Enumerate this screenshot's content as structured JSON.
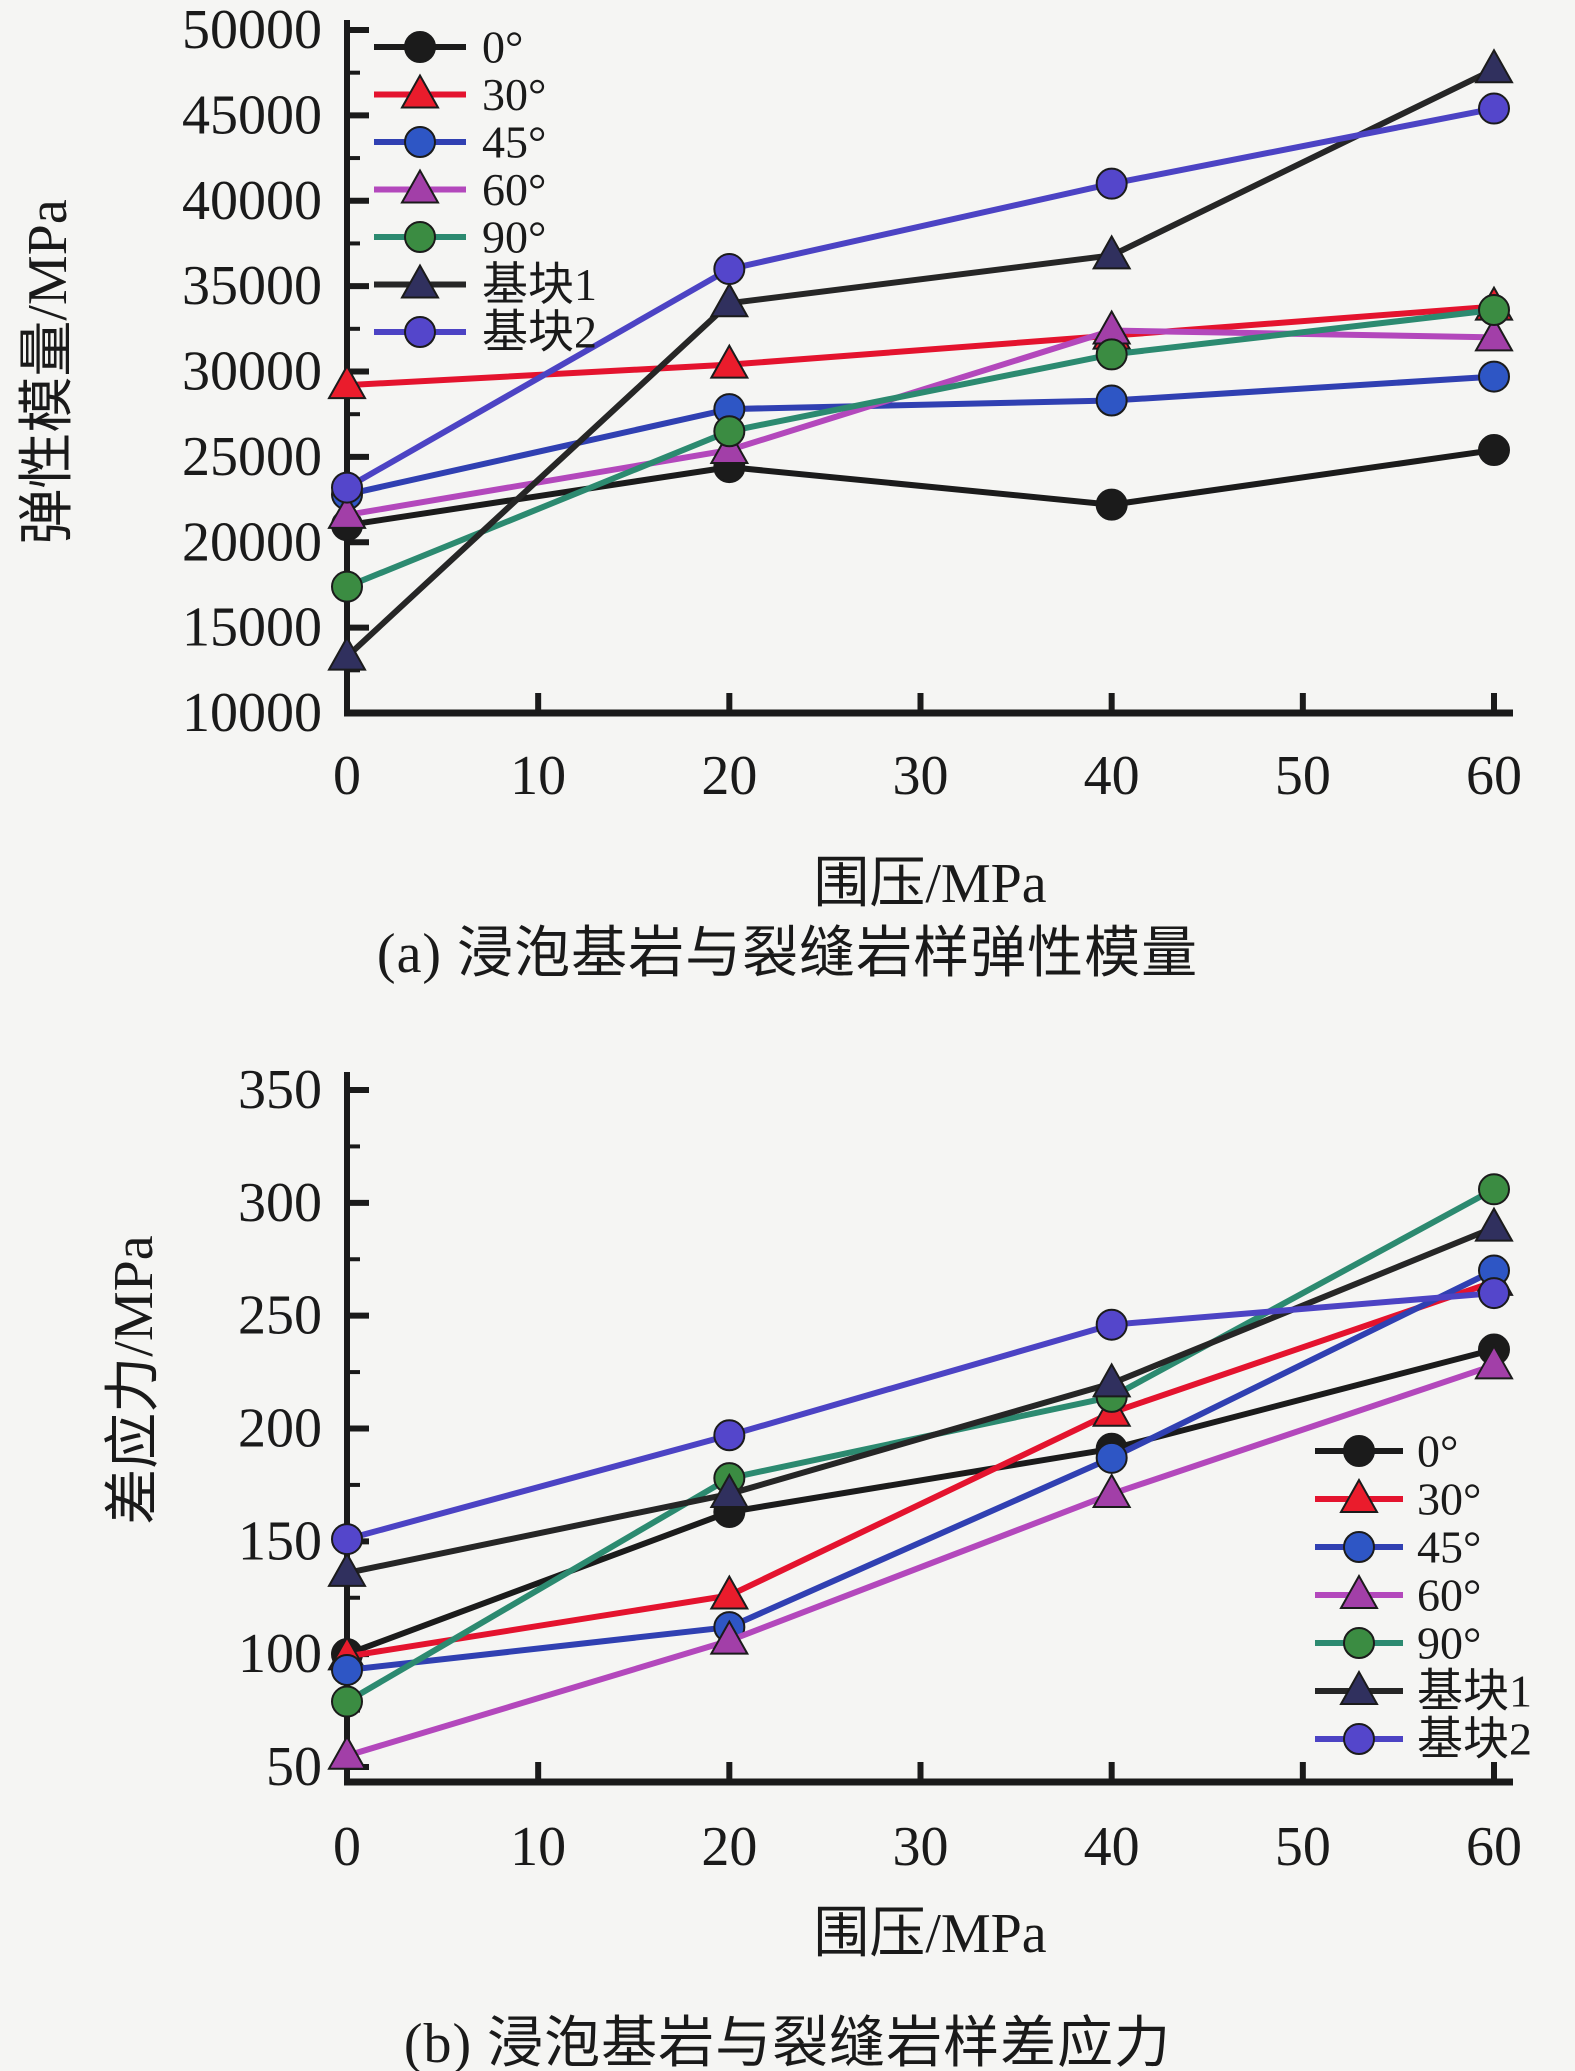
{
  "figure": {
    "background": "#f5f5f3",
    "text_color": "#1a1a1a"
  },
  "chart_data": [
    {
      "id": "a",
      "type": "line",
      "caption": "(a) 浸泡基岩与裂缝岩样弹性模量",
      "xlabel": "围压/MPa",
      "ylabel": "弹性模量/MPa",
      "xlim": [
        0,
        60
      ],
      "ylim": [
        10000,
        50000
      ],
      "xticks": [
        0,
        10,
        20,
        30,
        40,
        50,
        60
      ],
      "yticks": [
        10000,
        15000,
        20000,
        25000,
        30000,
        35000,
        40000,
        45000,
        50000
      ],
      "grid": false,
      "legend_position": "top-left",
      "x": [
        0,
        20,
        40,
        60
      ],
      "series": [
        {
          "name": "0°",
          "marker": "circle",
          "line_color": "#1b1b1b",
          "marker_color": "#1b1b1b",
          "values": [
            21000,
            24400,
            22200,
            25400
          ]
        },
        {
          "name": "30°",
          "marker": "triangle",
          "line_color": "#e4132e",
          "marker_color": "#ea1c2c",
          "values": [
            29200,
            30400,
            32100,
            33800
          ]
        },
        {
          "name": "45°",
          "marker": "circle",
          "line_color": "#3040b2",
          "marker_color": "#2e56c5",
          "values": [
            22800,
            27800,
            28300,
            29700
          ]
        },
        {
          "name": "60°",
          "marker": "triangle",
          "line_color": "#b348bc",
          "marker_color": "#a23fa8",
          "values": [
            21600,
            25400,
            32400,
            32000
          ]
        },
        {
          "name": "90°",
          "marker": "circle",
          "line_color": "#2c8a70",
          "marker_color": "#3b8c42",
          "values": [
            17400,
            26500,
            31000,
            33600
          ]
        },
        {
          "name": "基块1",
          "marker": "triangle",
          "line_color": "#262626",
          "marker_color": "#30305e",
          "values": [
            13300,
            34000,
            36800,
            47700
          ]
        },
        {
          "name": "基块2",
          "marker": "circle",
          "line_color": "#4c43c4",
          "marker_color": "#5446cb",
          "values": [
            23200,
            36000,
            41000,
            45400
          ]
        }
      ]
    },
    {
      "id": "b",
      "type": "line",
      "caption": "(b) 浸泡基岩与裂缝岩样差应力",
      "xlabel": "围压/MPa",
      "ylabel": "差应力/MPa",
      "xlim": [
        0,
        60
      ],
      "ylim": [
        50,
        350
      ],
      "xticks": [
        0,
        10,
        20,
        30,
        40,
        50,
        60
      ],
      "yticks": [
        50,
        100,
        150,
        200,
        250,
        300,
        350
      ],
      "grid": false,
      "legend_position": "right-bottom",
      "x": [
        0,
        20,
        40,
        60
      ],
      "series": [
        {
          "name": "0°",
          "marker": "circle",
          "line_color": "#1b1b1b",
          "marker_color": "#1b1b1b",
          "values": [
            100,
            163,
            191,
            235
          ]
        },
        {
          "name": "30°",
          "marker": "triangle",
          "line_color": "#e4132e",
          "marker_color": "#ea1c2c",
          "values": [
            99,
            126,
            207,
            265
          ]
        },
        {
          "name": "45°",
          "marker": "circle",
          "line_color": "#3040b2",
          "marker_color": "#2e56c5",
          "values": [
            93,
            112,
            187,
            270
          ]
        },
        {
          "name": "60°",
          "marker": "triangle",
          "line_color": "#b348bc",
          "marker_color": "#a23fa8",
          "values": [
            55,
            106,
            171,
            228
          ]
        },
        {
          "name": "90°",
          "marker": "circle",
          "line_color": "#2c8a70",
          "marker_color": "#3b8c42",
          "values": [
            79,
            178,
            214,
            306
          ]
        },
        {
          "name": "基块1",
          "marker": "triangle",
          "line_color": "#262626",
          "marker_color": "#30305e",
          "values": [
            136,
            171,
            220,
            289
          ]
        },
        {
          "name": "基块2",
          "marker": "circle",
          "line_color": "#4c43c4",
          "marker_color": "#5446cb",
          "values": [
            151,
            197,
            246,
            260
          ]
        }
      ]
    }
  ]
}
